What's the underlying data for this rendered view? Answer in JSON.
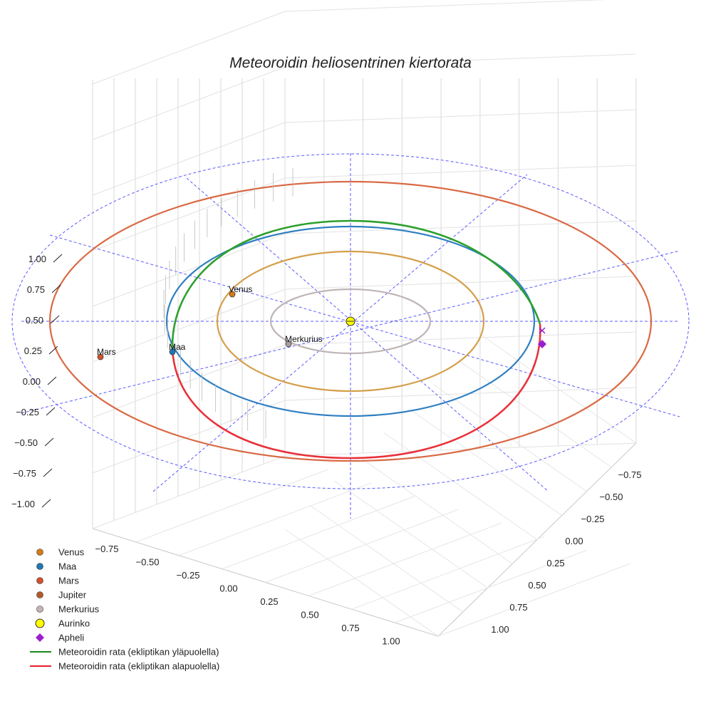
{
  "chart_data": {
    "type": "scatter3d",
    "title": "Meteoroidin heliosentrinen kiertorata",
    "axes": {
      "x": {
        "ticks": [
          "−0.75",
          "−0.50",
          "−0.25",
          "0.00",
          "0.25",
          "0.50",
          "0.75",
          "1.00"
        ],
        "range": [
          -1.0,
          1.0
        ]
      },
      "y": {
        "ticks": [
          "−0.75",
          "−0.50",
          "−0.25",
          "0.00",
          "0.25",
          "0.50",
          "0.75",
          "1.00"
        ],
        "range": [
          -1.0,
          1.0
        ]
      },
      "z": {
        "ticks": [
          "1.00",
          "0.75",
          "0.50",
          "0.25",
          "0.00",
          "−0.25",
          "−0.50",
          "−0.75",
          "−1.00"
        ],
        "range": [
          -1.0,
          1.0
        ]
      }
    },
    "orbits": [
      {
        "name": "Merkurius",
        "radius_au": 0.39,
        "color": "#bfb5b5"
      },
      {
        "name": "Venus",
        "radius_au": 0.72,
        "color": "#d4a04c"
      },
      {
        "name": "Maa",
        "radius_au": 1.0,
        "color": "#2f7fc1"
      },
      {
        "name": "Mars",
        "radius_au": 1.52,
        "color": "#d96a45"
      }
    ],
    "planets": [
      {
        "name": "Venus",
        "label": "Venus",
        "color": "#d47a18"
      },
      {
        "name": "Maa",
        "label": "Maa",
        "color": "#1f77b4"
      },
      {
        "name": "Mars",
        "label": "Mars",
        "color": "#d3522b"
      },
      {
        "name": "Merkurius",
        "label": "Merkurius",
        "color": "#a89c9c"
      }
    ],
    "meteoroid": {
      "above_ecliptic_color": "#2ca02c",
      "below_ecliptic_color": "#e8313a"
    },
    "sun_color": "#ffff00",
    "aphelion_color": "#9b1fd1",
    "legend": [
      {
        "label": "Venus",
        "kind": "dot",
        "color": "#d47a18"
      },
      {
        "label": "Maa",
        "kind": "dot",
        "color": "#1f77b4"
      },
      {
        "label": "Mars",
        "kind": "dot",
        "color": "#d3522b"
      },
      {
        "label": "Jupiter",
        "kind": "dot",
        "color": "#b4582a"
      },
      {
        "label": "Merkurius",
        "kind": "dot",
        "color": "#c6b4b4"
      },
      {
        "label": "Aurinko",
        "kind": "sun",
        "color": "#ffff00"
      },
      {
        "label": "Apheli",
        "kind": "diamond",
        "color": "#9b1fd1"
      },
      {
        "label": "Meteoroidin rata (ekliptikan yläpuolella)",
        "kind": "line",
        "color": "#1a8a1a"
      },
      {
        "label": "Meteoroidin rata (ekliptikan alapuolella)",
        "kind": "line",
        "color": "#e8202a"
      }
    ]
  }
}
